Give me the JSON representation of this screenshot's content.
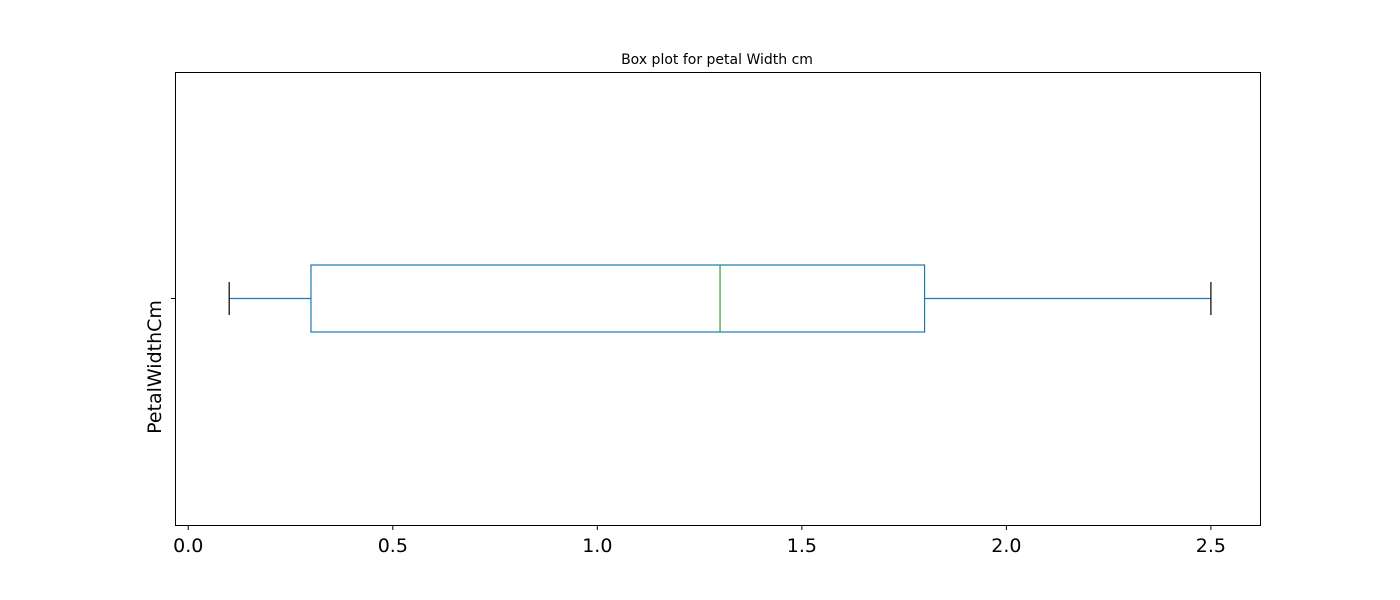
{
  "chart_data": {
    "type": "box",
    "orientation": "horizontal",
    "title": "Box plot for petal Width cm",
    "xlabel": "",
    "ylabel": "PetalWidthCm",
    "xlim": [
      -0.03,
      2.62
    ],
    "xticks": [
      0.0,
      0.5,
      1.0,
      1.5,
      2.0,
      2.5
    ],
    "xtick_labels": [
      "0.0",
      "0.5",
      "1.0",
      "1.5",
      "2.0",
      "2.5"
    ],
    "grid": false,
    "series": [
      {
        "whisker_low": 0.1,
        "q1": 0.3,
        "median": 1.3,
        "q3": 1.8,
        "whisker_high": 2.5
      }
    ],
    "colors": {
      "box": "#1f77b4",
      "whisker": "#1f77b4",
      "median": "#2ca02c",
      "cap": "#000000"
    }
  }
}
